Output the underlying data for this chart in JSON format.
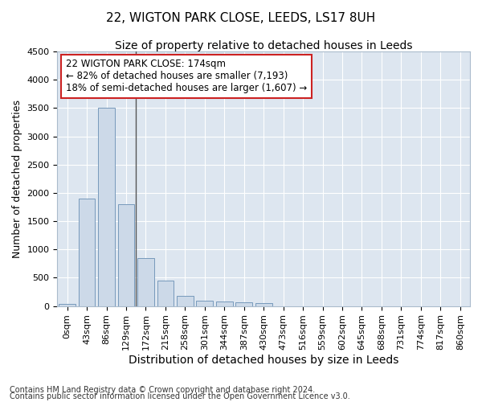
{
  "title1": "22, WIGTON PARK CLOSE, LEEDS, LS17 8UH",
  "title2": "Size of property relative to detached houses in Leeds",
  "xlabel": "Distribution of detached houses by size in Leeds",
  "ylabel": "Number of detached properties",
  "annotation_line1": "22 WIGTON PARK CLOSE: 174sqm",
  "annotation_line2": "← 82% of detached houses are smaller (7,193)",
  "annotation_line3": "18% of semi-detached houses are larger (1,607) →",
  "footer1": "Contains HM Land Registry data © Crown copyright and database right 2024.",
  "footer2": "Contains public sector information licensed under the Open Government Licence v3.0.",
  "bar_color": "#ccd9e8",
  "bar_edge_color": "#7799bb",
  "bg_color": "#dde6f0",
  "vline_color": "#555555",
  "annotation_box_color": "#ffffff",
  "annotation_box_edge": "#cc2222",
  "categories": [
    "0sqm",
    "43sqm",
    "86sqm",
    "129sqm",
    "172sqm",
    "215sqm",
    "258sqm",
    "301sqm",
    "344sqm",
    "387sqm",
    "430sqm",
    "473sqm",
    "516sqm",
    "559sqm",
    "602sqm",
    "645sqm",
    "688sqm",
    "731sqm",
    "774sqm",
    "817sqm",
    "860sqm"
  ],
  "values": [
    30,
    1900,
    3500,
    1800,
    850,
    450,
    175,
    100,
    75,
    65,
    50,
    0,
    0,
    0,
    0,
    0,
    0,
    0,
    0,
    0,
    0
  ],
  "ylim": [
    0,
    4500
  ],
  "yticks": [
    0,
    500,
    1000,
    1500,
    2000,
    2500,
    3000,
    3500,
    4000,
    4500
  ],
  "vline_pos": 3.5,
  "title1_fontsize": 11,
  "title2_fontsize": 10,
  "xlabel_fontsize": 10,
  "ylabel_fontsize": 9,
  "tick_fontsize": 8,
  "annotation_fontsize": 8.5,
  "footer_fontsize": 7
}
